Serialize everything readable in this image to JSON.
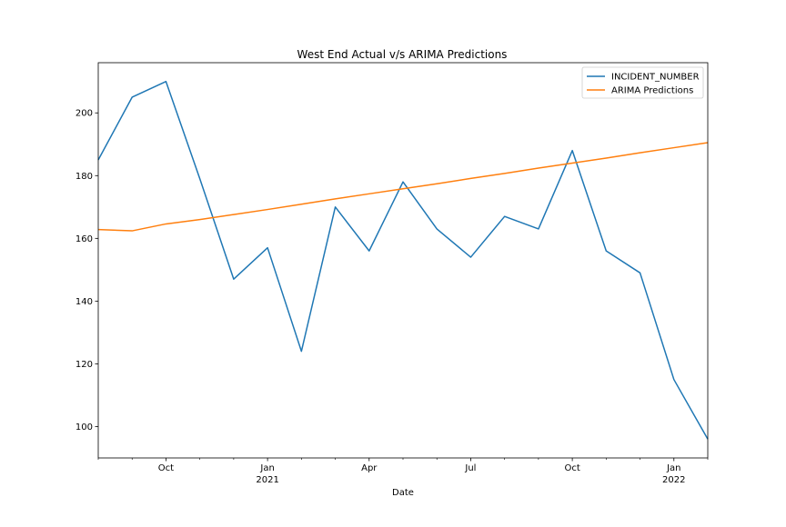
{
  "chart_data": {
    "type": "line",
    "title": "West End Actual v/s ARIMA Predictions",
    "xlabel": "Date",
    "ylabel": "",
    "x": [
      "2020-08",
      "2020-09",
      "2020-10",
      "2020-11",
      "2020-12",
      "2021-01",
      "2021-02",
      "2021-03",
      "2021-04",
      "2021-05",
      "2021-06",
      "2021-07",
      "2021-08",
      "2021-09",
      "2021-10",
      "2021-11",
      "2021-12",
      "2022-01",
      "2022-02"
    ],
    "xlim": [
      "2020-08",
      "2022-02"
    ],
    "ylim": [
      90,
      216
    ],
    "grid": false,
    "legend_position": "top-right",
    "x_ticks": [
      {
        "x": "2020-10",
        "label": "Oct",
        "sublabel": ""
      },
      {
        "x": "2021-01",
        "label": "Jan",
        "sublabel": "2021"
      },
      {
        "x": "2021-04",
        "label": "Apr",
        "sublabel": ""
      },
      {
        "x": "2021-07",
        "label": "Jul",
        "sublabel": ""
      },
      {
        "x": "2021-10",
        "label": "Oct",
        "sublabel": ""
      },
      {
        "x": "2022-01",
        "label": "Jan",
        "sublabel": "2022"
      }
    ],
    "y_ticks": [
      100,
      120,
      140,
      160,
      180,
      200
    ],
    "series": [
      {
        "name": "INCIDENT_NUMBER",
        "color": "#1f77b4",
        "values": [
          185,
          205,
          210,
          179,
          147,
          157,
          124,
          170,
          156,
          178,
          163,
          154,
          167,
          163,
          188,
          156,
          149,
          115,
          96
        ]
      },
      {
        "name": "ARIMA Predictions",
        "color": "#ff7f0e",
        "values": [
          162.8,
          162.4,
          164.6,
          166.0,
          167.6,
          169.2,
          170.9,
          172.6,
          174.2,
          175.8,
          177.4,
          179.1,
          180.7,
          182.4,
          184.0,
          185.6,
          187.3,
          188.9,
          190.5
        ]
      }
    ]
  }
}
